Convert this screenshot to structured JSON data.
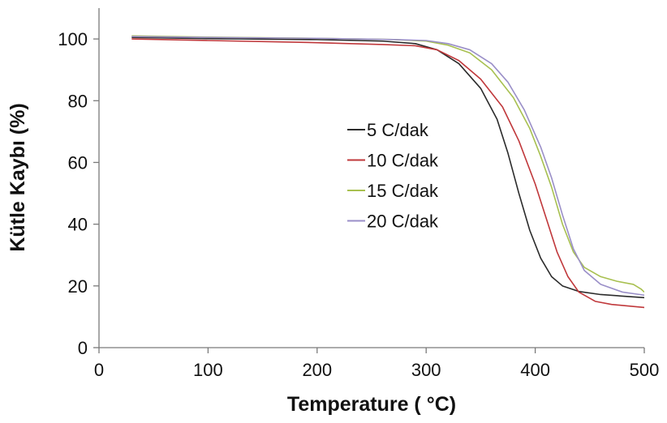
{
  "chart_data": {
    "type": "line",
    "title": "",
    "xlabel": "Temperature ( °C)",
    "ylabel": "Kütle Kaybı (%)",
    "xlim": [
      0,
      500
    ],
    "ylim": [
      0,
      110
    ],
    "xticks": [
      0,
      100,
      200,
      300,
      400,
      500
    ],
    "yticks": [
      0,
      20,
      40,
      60,
      80,
      100
    ],
    "xtick_labels": [
      "0",
      "100",
      "200",
      "300",
      "400",
      "500"
    ],
    "ytick_labels": [
      "0",
      "20",
      "40",
      "60",
      "80",
      "100"
    ],
    "grid": false,
    "legend_position": "center-right",
    "series": [
      {
        "name": "5 C/dak",
        "color": "#2b2b2b",
        "points": [
          [
            30,
            100.5
          ],
          [
            100,
            100.1
          ],
          [
            200,
            99.8
          ],
          [
            260,
            99.3
          ],
          [
            290,
            98.5
          ],
          [
            310,
            96.5
          ],
          [
            330,
            92
          ],
          [
            350,
            84
          ],
          [
            365,
            74
          ],
          [
            375,
            63
          ],
          [
            385,
            50
          ],
          [
            395,
            38
          ],
          [
            405,
            29
          ],
          [
            415,
            23
          ],
          [
            425,
            20
          ],
          [
            440,
            18.2
          ],
          [
            460,
            17.2
          ],
          [
            480,
            16.7
          ],
          [
            500,
            16.2
          ]
        ]
      },
      {
        "name": "10 C/dak",
        "color": "#c0383b",
        "points": [
          [
            30,
            100
          ],
          [
            100,
            99.5
          ],
          [
            200,
            98.8
          ],
          [
            260,
            98.2
          ],
          [
            290,
            97.8
          ],
          [
            310,
            96.5
          ],
          [
            330,
            93
          ],
          [
            350,
            87
          ],
          [
            370,
            78
          ],
          [
            385,
            67
          ],
          [
            400,
            53
          ],
          [
            410,
            42
          ],
          [
            420,
            31
          ],
          [
            430,
            23
          ],
          [
            440,
            18
          ],
          [
            455,
            15
          ],
          [
            470,
            14
          ],
          [
            485,
            13.5
          ],
          [
            500,
            13
          ]
        ]
      },
      {
        "name": "15 C/dak",
        "color": "#a8c050",
        "points": [
          [
            30,
            101
          ],
          [
            100,
            100.6
          ],
          [
            200,
            100.2
          ],
          [
            270,
            99.8
          ],
          [
            300,
            99.3
          ],
          [
            320,
            98
          ],
          [
            340,
            95.5
          ],
          [
            360,
            90
          ],
          [
            380,
            81
          ],
          [
            395,
            71
          ],
          [
            405,
            62
          ],
          [
            415,
            52
          ],
          [
            425,
            40
          ],
          [
            435,
            31
          ],
          [
            445,
            26
          ],
          [
            460,
            23
          ],
          [
            475,
            21.5
          ],
          [
            490,
            20.5
          ],
          [
            497,
            19
          ],
          [
            500,
            18
          ]
        ]
      },
      {
        "name": "20 C/dak",
        "color": "#9a8fc8",
        "points": [
          [
            30,
            100.8
          ],
          [
            100,
            100.5
          ],
          [
            200,
            100.2
          ],
          [
            270,
            99.8
          ],
          [
            300,
            99.5
          ],
          [
            320,
            98.5
          ],
          [
            340,
            96.5
          ],
          [
            360,
            92
          ],
          [
            375,
            86
          ],
          [
            390,
            77
          ],
          [
            405,
            65
          ],
          [
            415,
            55
          ],
          [
            425,
            43
          ],
          [
            435,
            32
          ],
          [
            445,
            25
          ],
          [
            460,
            20.5
          ],
          [
            480,
            18
          ],
          [
            500,
            17
          ]
        ]
      }
    ]
  }
}
